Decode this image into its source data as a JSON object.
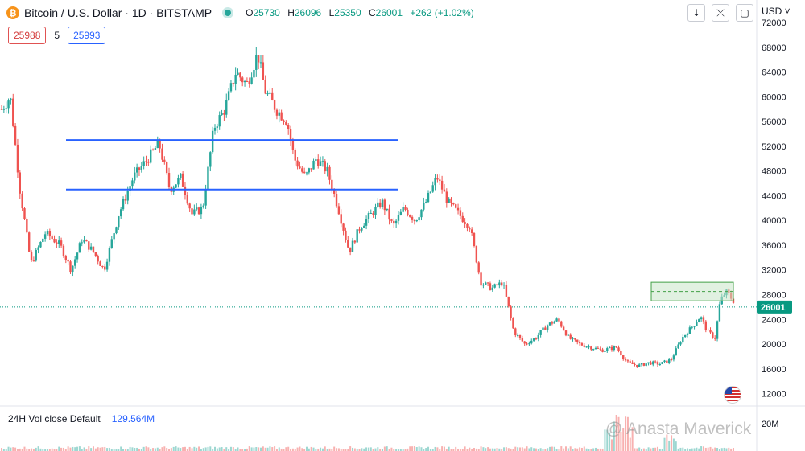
{
  "header": {
    "symbol_icon": "bitcoin-icon",
    "title": "Bitcoin / U.S. Dollar · 1D · BITSTAMP",
    "open_label": "O",
    "open": "25730",
    "high_label": "H",
    "high": "26096",
    "low_label": "L",
    "low": "25350",
    "close_label": "C",
    "close": "26001",
    "change": "+262 (+1.02%)",
    "sell_price": "25988",
    "spread": "5",
    "buy_price": "25993"
  },
  "toolbar": {
    "currency": "USD",
    "icons": [
      "arrow-down-icon",
      "collapse-icon",
      "fullscreen-icon"
    ]
  },
  "volume": {
    "label": "24H Vol close Default",
    "value": "129.564M",
    "axis_label": "20M"
  },
  "watermark": "@ Anasta Maverick",
  "colors": {
    "up": "#26a69a",
    "down": "#ef5350",
    "line": "#2962ff",
    "box_fill": "#c8e6c9",
    "box_stroke": "#43a047",
    "last_price": "#089981"
  },
  "chart_data": {
    "type": "candlestick",
    "series_name": "BTCUSD 1D",
    "ylim": [
      10000,
      72000
    ],
    "yticks": [
      12000,
      16000,
      20000,
      24000,
      28000,
      32000,
      36000,
      40000,
      44000,
      48000,
      52000,
      56000,
      60000,
      64000,
      68000,
      72000
    ],
    "last_price": 26001,
    "last_price_label": "26001",
    "price_path": [
      [
        0,
        58000
      ],
      [
        0.012,
        60000
      ],
      [
        0.025,
        45000
      ],
      [
        0.04,
        33000
      ],
      [
        0.06,
        38000
      ],
      [
        0.08,
        36000
      ],
      [
        0.095,
        32000
      ],
      [
        0.11,
        37000
      ],
      [
        0.125,
        35000
      ],
      [
        0.14,
        32000
      ],
      [
        0.16,
        41000
      ],
      [
        0.18,
        47000
      ],
      [
        0.2,
        50000
      ],
      [
        0.215,
        52500
      ],
      [
        0.23,
        45000
      ],
      [
        0.245,
        47000
      ],
      [
        0.26,
        41000
      ],
      [
        0.275,
        42000
      ],
      [
        0.29,
        55000
      ],
      [
        0.305,
        58000
      ],
      [
        0.32,
        64000
      ],
      [
        0.335,
        62000
      ],
      [
        0.35,
        67000
      ],
      [
        0.36,
        61000
      ],
      [
        0.375,
        58000
      ],
      [
        0.39,
        56000
      ],
      [
        0.4,
        50000
      ],
      [
        0.415,
        47000
      ],
      [
        0.43,
        50000
      ],
      [
        0.445,
        48000
      ],
      [
        0.46,
        42000
      ],
      [
        0.475,
        35000
      ],
      [
        0.49,
        39000
      ],
      [
        0.505,
        41000
      ],
      [
        0.52,
        43000
      ],
      [
        0.535,
        39000
      ],
      [
        0.55,
        42000
      ],
      [
        0.565,
        40000
      ],
      [
        0.58,
        43000
      ],
      [
        0.595,
        47000
      ],
      [
        0.61,
        43000
      ],
      [
        0.625,
        41000
      ],
      [
        0.64,
        39000
      ],
      [
        0.655,
        30000
      ],
      [
        0.67,
        29000
      ],
      [
        0.685,
        30000
      ],
      [
        0.7,
        22000
      ],
      [
        0.715,
        20000
      ],
      [
        0.73,
        21000
      ],
      [
        0.745,
        23000
      ],
      [
        0.76,
        24000
      ],
      [
        0.775,
        21000
      ],
      [
        0.79,
        20000
      ],
      [
        0.805,
        19500
      ],
      [
        0.82,
        19000
      ],
      [
        0.84,
        19500
      ],
      [
        0.855,
        17000
      ],
      [
        0.87,
        16500
      ],
      [
        0.885,
        17000
      ],
      [
        0.9,
        16800
      ],
      [
        0.915,
        17500
      ],
      [
        0.93,
        21000
      ],
      [
        0.945,
        23000
      ],
      [
        0.955,
        24500
      ],
      [
        0.965,
        22000
      ],
      [
        0.975,
        21000
      ],
      [
        0.982,
        27000
      ],
      [
        0.99,
        28500
      ],
      [
        1,
        27000
      ]
    ],
    "price_path_note": "",
    "horizontal_lines": [
      53000,
      45000
    ],
    "range_box": {
      "top": 30000,
      "bottom": 27000
    }
  }
}
